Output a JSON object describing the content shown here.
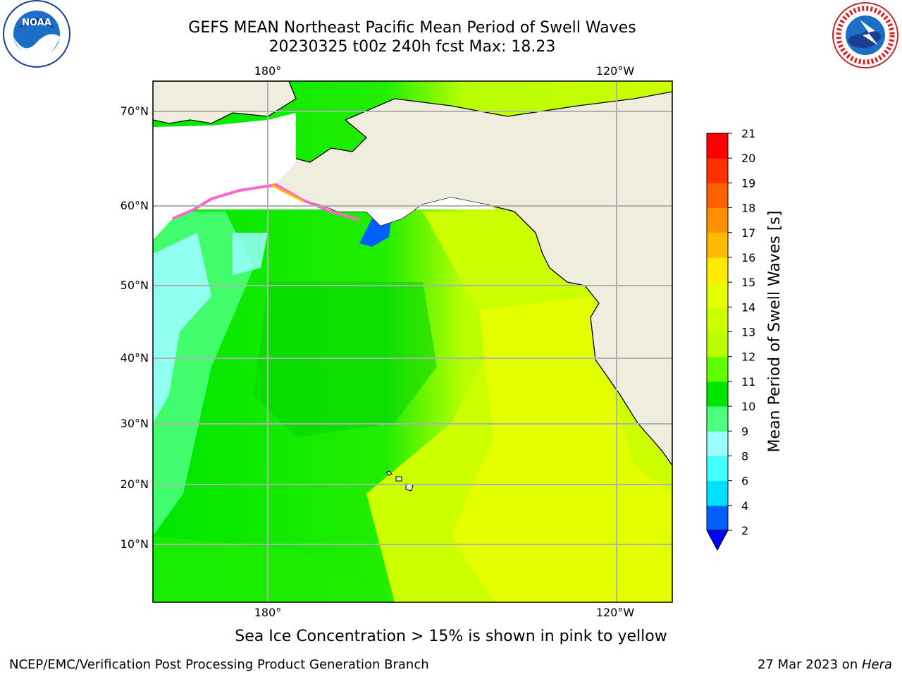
{
  "header": {
    "title_line1": "GEFS MEAN Northeast Pacific Mean Period of Swell Waves",
    "title_line2": "20230325 t00z 240h fcst   Max: 18.23"
  },
  "logos": {
    "left": "NOAA",
    "right": "NATIONAL WEATHER SERVICE"
  },
  "map": {
    "lon_labels_top": [
      "180°",
      "120°W"
    ],
    "lon_labels_bottom": [
      "180°",
      "120°W"
    ],
    "lat_labels": [
      "70°N",
      "60°N",
      "50°N",
      "40°N",
      "30°N",
      "20°N",
      "10°N"
    ],
    "land_color": "#efedde",
    "grid_color": "#b0b0b0"
  },
  "chart_data": {
    "type": "heatmap",
    "title": "GEFS MEAN Northeast Pacific Mean Period of Swell Waves",
    "colorbar": {
      "label": "Mean Period of Swell Waves [s]",
      "levels": [
        2,
        4,
        6,
        8,
        9,
        10,
        11,
        12,
        13,
        14,
        15,
        16,
        17,
        18,
        19,
        20,
        21
      ],
      "tick_labels": [
        "2",
        "4",
        "6",
        "8",
        "9",
        "10",
        "11",
        "12",
        "13",
        "14",
        "15",
        "16",
        "17",
        "18",
        "19",
        "20",
        "21"
      ],
      "colors": [
        "#0060ff",
        "#00dfff",
        "#44ffff",
        "#99ffff",
        "#4cff7f",
        "#00e600",
        "#5eff00",
        "#b9ff00",
        "#ccff00",
        "#e6ff00",
        "#ffeb00",
        "#ffbb00",
        "#ff9000",
        "#ff6000",
        "#ff3000",
        "#ff0000"
      ],
      "extend_color": "#0000ff"
    },
    "max_value": 18.23
  },
  "footer": {
    "subtitle": "Sea Ice Concentration > 15% is shown in pink to yellow",
    "left": "NCEP/EMC/Verification Post Processing Product Generation Branch",
    "right_date": "27 Mar 2023 on ",
    "right_host": "Hera"
  }
}
